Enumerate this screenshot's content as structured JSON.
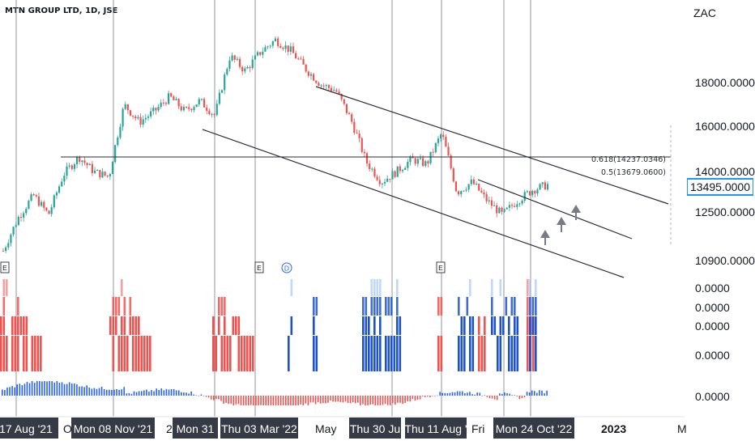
{
  "header": {
    "symbol": "MTN GROUP LTD, 1D, JSE",
    "currency": "ZAC"
  },
  "chart_data": {
    "type": "candlestick",
    "title": "MTN GROUP LTD, 1D, JSE",
    "y_axis": {
      "unit": "ZAC",
      "scale": "log",
      "ticks": [
        "18000.0000",
        "16000.0000",
        "14000.0000",
        "12500.0000",
        "10900.0000"
      ]
    },
    "indicator_axis_ticks": [
      "0.0000",
      "0.0000",
      "0.0000",
      "0.0000",
      "0.0000"
    ],
    "last_price": "13495.0000",
    "x_axis_labels": [
      "17 Aug '21",
      "Oc",
      "Mon 08 Nov '21",
      "2",
      "Mon 31",
      "Thu 03 Mar '22",
      "May",
      "Thu 30 Ju",
      "Thu 11 Aug '",
      "Fri",
      "Mon 24 Oct '22",
      "2023",
      "M"
    ],
    "fib_levels": [
      {
        "label": "0.618(14237.0346)",
        "value": 14237.0346
      },
      {
        "label": "0.5(13679.0600)",
        "value": 13679.06
      }
    ],
    "event_markers": [
      "E",
      "E",
      "D",
      "E"
    ],
    "series_points": [
      [
        "Aug '21",
        11200
      ],
      [
        "Aug '21",
        12300
      ],
      [
        "Sep '21",
        13100
      ],
      [
        "Sep '21",
        12400
      ],
      [
        "Sep '21",
        13900
      ],
      [
        "Oct '21",
        14600
      ],
      [
        "Oct '21",
        14000
      ],
      [
        "Oct '21",
        13800
      ],
      [
        "Nov '21",
        16900
      ],
      [
        "Nov '21",
        16100
      ],
      [
        "Nov '21",
        16600
      ],
      [
        "Dec '21",
        17300
      ],
      [
        "Dec '21",
        16600
      ],
      [
        "Jan '22",
        17100
      ],
      [
        "Jan '22",
        16400
      ],
      [
        "Jan '22",
        19400
      ],
      [
        "Feb '22",
        18600
      ],
      [
        "Feb '22",
        19600
      ],
      [
        "Mar '22",
        20300
      ],
      [
        "Mar '22",
        19700
      ],
      [
        "Apr '22",
        18700
      ],
      [
        "Apr '22",
        17900
      ],
      [
        "Apr '22",
        17600
      ],
      [
        "May '22",
        16200
      ],
      [
        "Jun '22",
        14400
      ],
      [
        "Jun '22",
        13600
      ],
      [
        "Jul '22",
        14000
      ],
      [
        "Jul '22",
        14500
      ],
      [
        "Aug '22",
        14300
      ],
      [
        "Aug '22",
        15600
      ],
      [
        "Aug '22",
        13200
      ],
      [
        "Sep '22",
        13600
      ],
      [
        "Sep '22",
        12900
      ],
      [
        "Oct '22",
        12400
      ],
      [
        "Oct '22",
        12900
      ],
      [
        "Oct '22",
        13300
      ],
      [
        "Oct '22",
        13495
      ]
    ]
  }
}
